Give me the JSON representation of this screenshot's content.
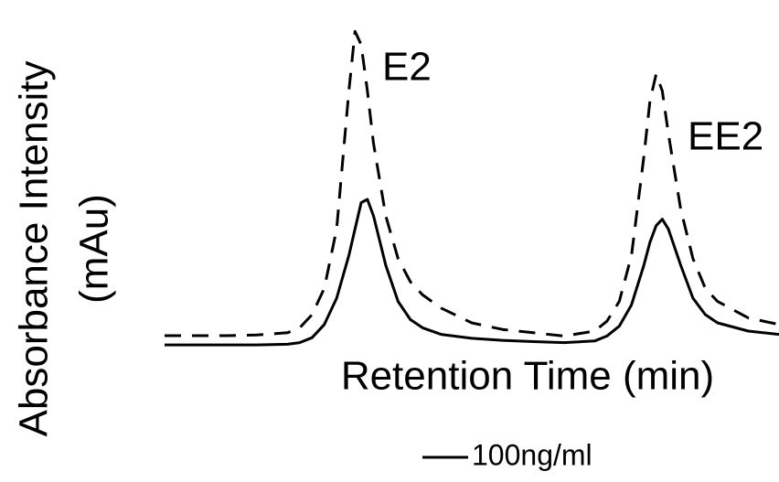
{
  "chart_data": {
    "type": "line",
    "xlabel": "Retention Time (min)",
    "ylabel": [
      "Absorbance Intensity",
      "(mAu)"
    ],
    "annotations": [
      "E2",
      "EE2"
    ],
    "x": [
      0,
      5,
      10,
      15,
      20,
      22,
      24,
      26,
      28,
      30,
      31,
      32,
      33,
      34,
      36,
      38,
      40,
      42,
      45,
      50,
      55,
      60,
      65,
      70,
      72,
      74,
      76,
      78,
      79,
      80,
      81,
      82,
      84,
      86,
      88,
      90,
      95,
      100
    ],
    "xlim": [
      0,
      100
    ],
    "ylim": [
      0,
      100
    ],
    "series": [
      {
        "name": "100ng/ml",
        "color": "#000000",
        "dash": false,
        "values": [
          0.8,
          0.8,
          0.8,
          0.8,
          1,
          1.5,
          3,
          7,
          15,
          28,
          36,
          44,
          45,
          40,
          25,
          14,
          8.5,
          6,
          4,
          2.8,
          2.2,
          1.8,
          1.5,
          2,
          3.5,
          6.5,
          13,
          25,
          32,
          37,
          39,
          36,
          25,
          15,
          10,
          7.5,
          5,
          4
        ]
      },
      {
        "color": "#000000",
        "dash": true,
        "values": [
          3.6,
          3.6,
          3.6,
          3.8,
          4.5,
          6,
          10,
          18,
          36,
          78,
          96,
          92,
          78,
          62,
          40,
          27,
          20,
          16,
          12,
          7.5,
          5.5,
          4.5,
          3.5,
          5,
          8,
          14,
          28,
          58,
          75,
          83,
          78,
          65,
          42,
          27,
          18,
          14,
          9,
          7
        ]
      }
    ]
  }
}
